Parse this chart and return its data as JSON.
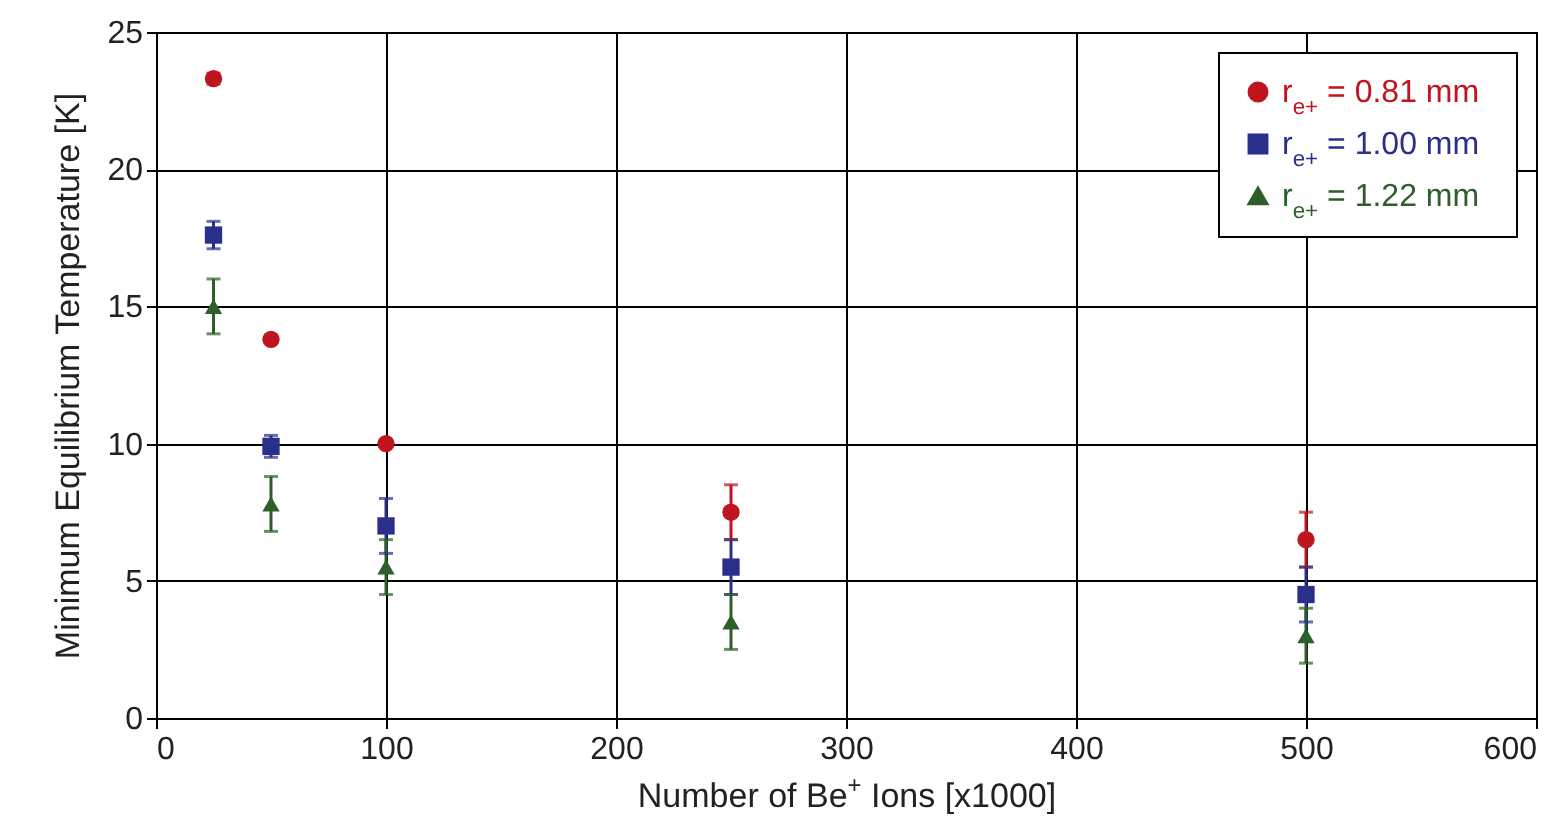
{
  "chart_data": {
    "type": "scatter",
    "xlabel": "Number of Be$^{+}$ Ions [x1000]",
    "ylabel": "Minimum Equilibrium Temperature [K]",
    "x": [
      25,
      50,
      100,
      250,
      500
    ],
    "series": [
      {
        "name": "r$_{e+}$ = 0.81 mm",
        "color": "#c0141e",
        "marker": "circle",
        "values": [
          23.3,
          13.8,
          10.0,
          7.5,
          6.5
        ],
        "errors": [
          0.2,
          null,
          null,
          1,
          1
        ]
      },
      {
        "name": "r$_{e+}$ = 1.00 mm",
        "color": "#2b2f8c",
        "marker": "square",
        "values": [
          17.6,
          9.9,
          7.0,
          5.5,
          4.5
        ],
        "errors": [
          0.5,
          0.4,
          1,
          1,
          1
        ]
      },
      {
        "name": "r$_{e+}$ = 1.22 mm",
        "color": "#2e5e2a",
        "marker": "triangle",
        "values": [
          15.0,
          7.8,
          5.5,
          3.5,
          3.0
        ],
        "errors": [
          1,
          1,
          1,
          1,
          1
        ]
      }
    ],
    "xlim": [
      0,
      600
    ],
    "xticks": [
      0,
      100,
      200,
      300,
      400,
      500,
      600
    ],
    "ylim": [
      0,
      25
    ],
    "yticks": [
      0,
      5,
      10,
      15,
      20,
      25
    ],
    "grid": true,
    "legend": "top right"
  }
}
